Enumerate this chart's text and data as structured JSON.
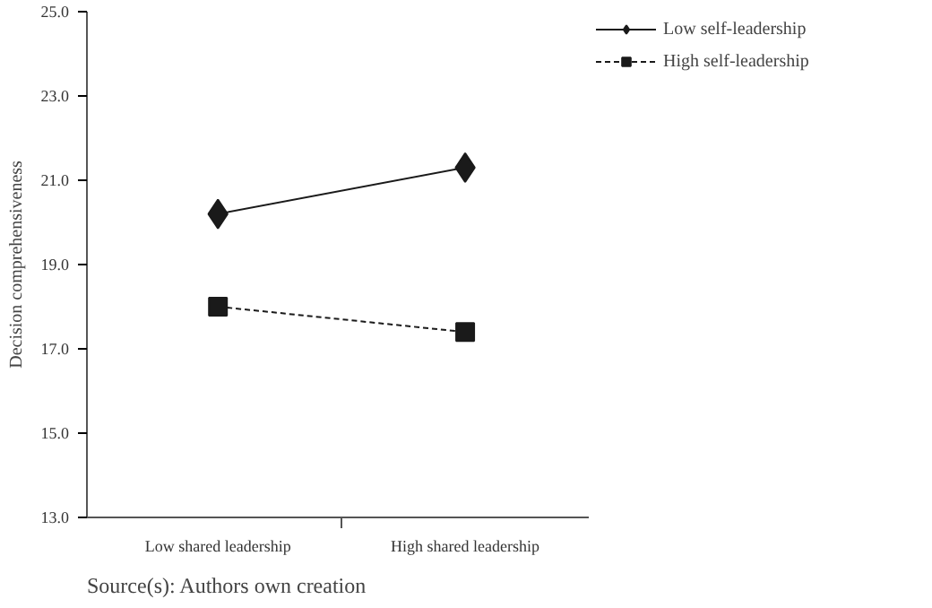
{
  "chart_data": {
    "type": "line",
    "ylabel": "Decision comprehensiveness",
    "categories": [
      "Low shared leadership",
      "High shared leadership"
    ],
    "series": [
      {
        "name": "Low self-leadership",
        "color": "#1a1a1a",
        "values": [
          20.2,
          21.3
        ],
        "marker": "diamond",
        "line_style": "solid"
      },
      {
        "name": "High self-leadership",
        "color": "#1a1a1a",
        "values": [
          18.0,
          17.4
        ],
        "marker": "square",
        "line_style": "dashed"
      }
    ],
    "ylim": [
      13,
      25
    ],
    "yticks": [
      {
        "value": 13,
        "label": "13.0"
      },
      {
        "value": 15,
        "label": "15.0"
      },
      {
        "value": 17,
        "label": "17.0"
      },
      {
        "value": 19,
        "label": "19.0"
      },
      {
        "value": 21,
        "label": "21.0"
      },
      {
        "value": 23,
        "label": "23.0"
      },
      {
        "value": 25,
        "label": "25.0"
      }
    ],
    "grid": false,
    "legend": "top right",
    "annotations": [
      "Source(s): Authors own creation"
    ]
  }
}
